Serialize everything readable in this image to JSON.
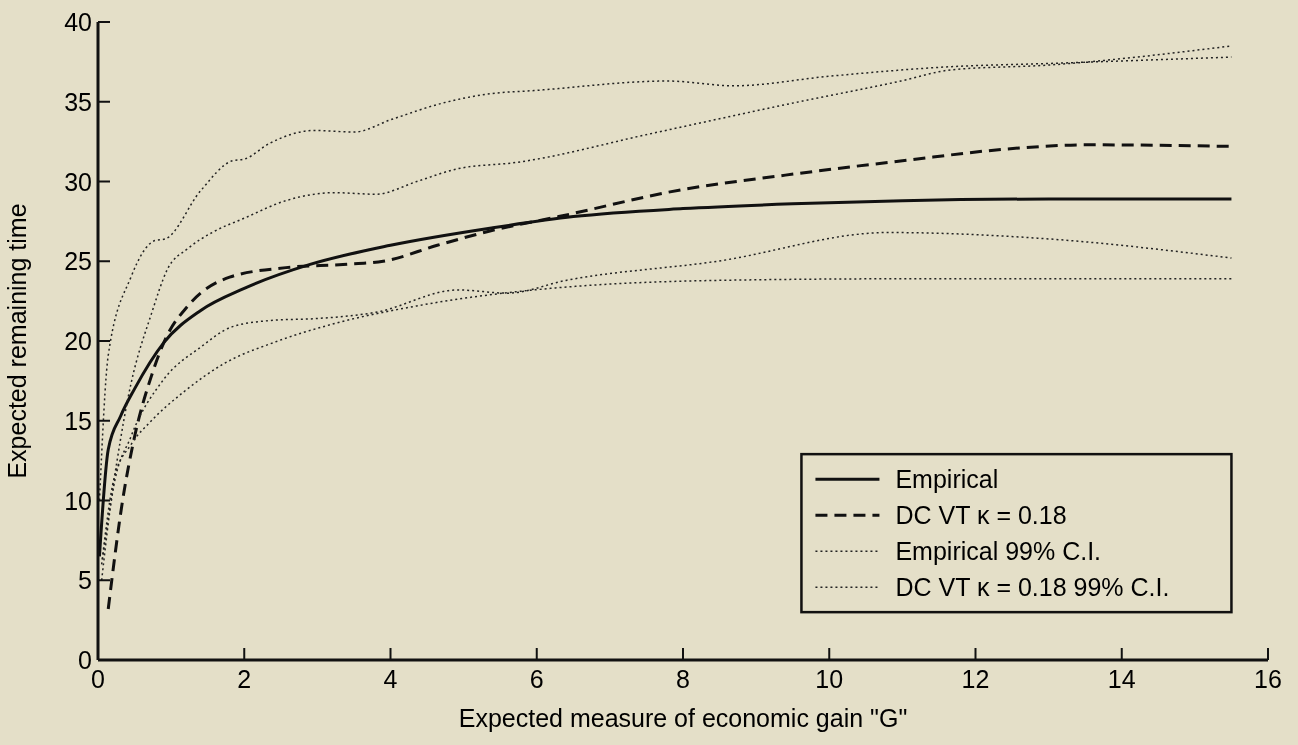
{
  "chart_data": {
    "type": "line",
    "xlabel": "Expected measure of economic gain \"G\"",
    "ylabel": "Expected remaining time",
    "xlim": [
      0,
      16
    ],
    "xticks": [
      0,
      2,
      4,
      6,
      8,
      10,
      12,
      14,
      16
    ],
    "ylim": [
      0,
      40
    ],
    "yticks": [
      0,
      5,
      10,
      15,
      20,
      25,
      30,
      35,
      40
    ],
    "grid": false,
    "legend": "bottom right",
    "series": [
      {
        "name": "Empirical",
        "color": "#111111",
        "line_style": "solid",
        "x": [
          0.02,
          0.14,
          0.31,
          0.5,
          0.9,
          1.4,
          2,
          2.9,
          4,
          5.4,
          6.5,
          8,
          9.5,
          11,
          13,
          15.5
        ],
        "values": [
          6.5,
          13.2,
          15.3,
          17,
          19.9,
          21.9,
          23.3,
          24.8,
          26,
          27.1,
          27.8,
          28.3,
          28.6,
          28.8,
          28.9,
          28.9
        ]
      },
      {
        "name": "DC VT κ = 0.18",
        "color": "#111111",
        "line_style": "dashed",
        "x": [
          0.14,
          0.34,
          0.5,
          0.73,
          0.92,
          1.23,
          1.8,
          2.57,
          3.35,
          3.9,
          4.64,
          5.36,
          6.3,
          8,
          9.4,
          11,
          12.6,
          13.5,
          15.5
        ],
        "values": [
          3.2,
          10.1,
          14,
          17.8,
          20.1,
          22.2,
          24,
          24.6,
          24.8,
          25,
          26,
          26.9,
          27.8,
          29.5,
          30.4,
          31.3,
          32.1,
          32.3,
          32.2
        ]
      },
      {
        "name": "Empirical 99% C.I.",
        "color": "#222222",
        "line_style": "dotted",
        "x": [
          0.02,
          0.14,
          0.45,
          0.78,
          0.92,
          1.4,
          1.84,
          2,
          2.35,
          2.96,
          3.5,
          4.02,
          4.7,
          5.36,
          5.96,
          7.79,
          8.7,
          10,
          11.67,
          13,
          15.5
        ],
        "values": [
          10,
          19.1,
          24,
          26.3,
          26.4,
          29.4,
          31.3,
          31.4,
          32.4,
          33.2,
          33.1,
          33.9,
          34.9,
          35.5,
          35.7,
          36.3,
          36,
          36.6,
          37.2,
          37.4,
          37.8
        ]
      },
      {
        "name": "DC VT κ = 0.18 99% C.I.",
        "color": "#222222",
        "line_style": "dotted",
        "x": [
          0.06,
          0.45,
          0.73,
          0.95,
          1.23,
          1.56,
          2,
          2.57,
          3.24,
          3.8,
          4.36,
          4.92,
          5.73,
          7.56,
          9.38,
          10.98,
          11.67,
          13,
          15.5
        ],
        "values": [
          6.3,
          17.3,
          21.7,
          24.5,
          25.8,
          26.8,
          27.7,
          28.8,
          29.3,
          29.2,
          30,
          30.8,
          31.2,
          33,
          34.8,
          36.3,
          37,
          37.3,
          38.5
        ]
      },
      {
        "color": "#222222",
        "line_style": "dotted",
        "x": [
          0.05,
          0.2,
          0.45,
          0.9,
          1.4,
          1.84,
          2.4,
          2.96,
          3.8,
          4.92,
          5.6,
          6.4,
          8.47,
          10.8,
          13,
          15.5
        ],
        "values": [
          5,
          10.5,
          14,
          17.6,
          19.6,
          20.9,
          21.3,
          21.4,
          21.8,
          23.2,
          23,
          23.8,
          25,
          26.8,
          26.4,
          25.2
        ]
      },
      {
        "color": "#222222",
        "line_style": "dotted",
        "x": [
          0.05,
          0.22,
          0.45,
          0.73,
          1.17,
          1.73,
          2.4,
          3.24,
          4.36,
          5.36,
          6.19,
          8.47,
          10.98,
          15.5
        ],
        "values": [
          6,
          11.4,
          13.5,
          15,
          16.8,
          18.6,
          19.9,
          21.1,
          22.2,
          22.9,
          23.3,
          23.8,
          23.9,
          23.9
        ]
      }
    ]
  }
}
